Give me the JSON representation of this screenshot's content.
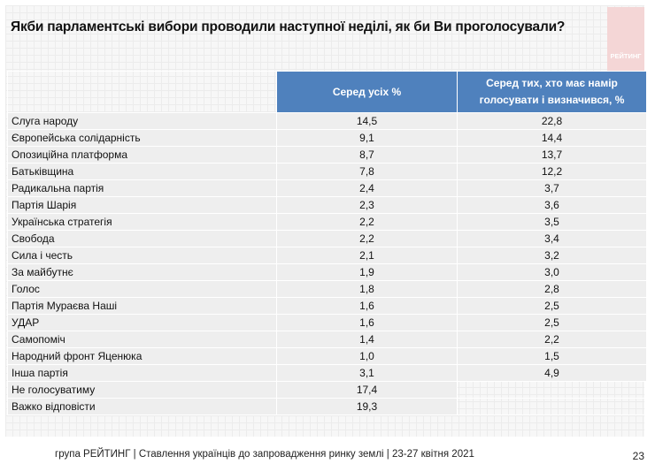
{
  "title": "Якби парламентські вибори проводили наступної неділі, як би Ви проголосували?",
  "logo": "РЕЙТИНГ",
  "table": {
    "headers": [
      "Серед усіх %",
      "Серед тих, хто має намір голосувати і визначився, %"
    ],
    "rows": [
      {
        "label": "Слуга народу",
        "all": "14,5",
        "decided": "22,8"
      },
      {
        "label": "Європейська солідарність",
        "all": "9,1",
        "decided": "14,4"
      },
      {
        "label": "Опозиційна платформа",
        "all": "8,7",
        "decided": "13,7"
      },
      {
        "label": "Батьківщина",
        "all": "7,8",
        "decided": "12,2"
      },
      {
        "label": "Радикальна партія",
        "all": "2,4",
        "decided": "3,7"
      },
      {
        "label": "Партія Шарія",
        "all": "2,3",
        "decided": "3,6"
      },
      {
        "label": "Українська стратегія",
        "all": "2,2",
        "decided": "3,5"
      },
      {
        "label": "Свобода",
        "all": "2,2",
        "decided": "3,4"
      },
      {
        "label": "Сила і честь",
        "all": "2,1",
        "decided": "3,2"
      },
      {
        "label": "За майбутнє",
        "all": "1,9",
        "decided": "3,0"
      },
      {
        "label": "Голос",
        "all": "1,8",
        "decided": "2,8"
      },
      {
        "label": "Партія Мураєва Наші",
        "all": "1,6",
        "decided": "2,5"
      },
      {
        "label": "УДАР",
        "all": "1,6",
        "decided": "2,5"
      },
      {
        "label": "Самопоміч",
        "all": "1,4",
        "decided": "2,2"
      },
      {
        "label": "Народний фронт Яценюка",
        "all": "1,0",
        "decided": "1,5"
      },
      {
        "label": "Інша партія",
        "all": "3,1",
        "decided": "4,9"
      },
      {
        "label": "Не голосуватиму",
        "all": "17,4",
        "decided": null
      },
      {
        "label": "Важко відповісти",
        "all": "19,3",
        "decided": null
      }
    ]
  },
  "footer": "група РЕЙТИНГ | Ставлення українців до запровадження ринку землі  | 23-27 квітня 2021",
  "page_number": "23",
  "colors": {
    "header": "#4f81bd",
    "logo": "#f4d6d6"
  }
}
